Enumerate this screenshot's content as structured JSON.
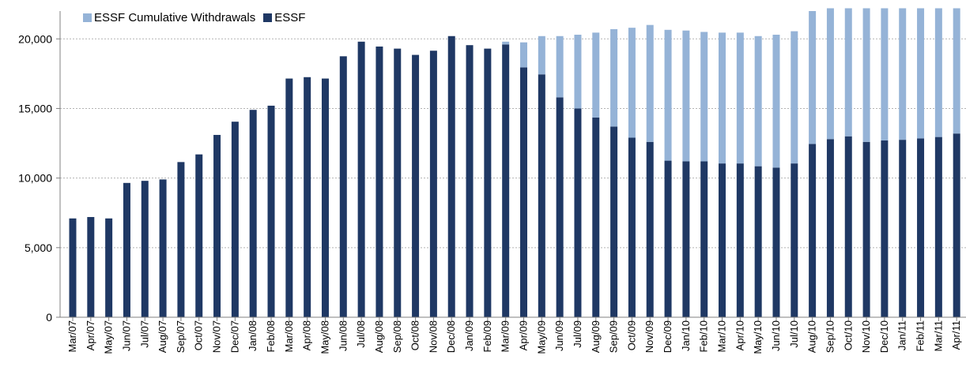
{
  "chart_data": {
    "type": "bar",
    "stacked": true,
    "categories": [
      "Mar/07",
      "Apr/07",
      "May/07",
      "Jun/07",
      "Jul/07",
      "Aug/07",
      "Sep/07",
      "Oct/07",
      "Nov/07",
      "Dec/07",
      "Jan/08",
      "Feb/08",
      "Mar/08",
      "Apr/08",
      "May/08",
      "Jun/08",
      "Jul/08",
      "Aug/08",
      "Sep/08",
      "Oct/08",
      "Nov/08",
      "Dec/08",
      "Jan/09",
      "Feb/09",
      "Mar/09",
      "Apr/09",
      "May/09",
      "Jun/09",
      "Jul/09",
      "Aug/09",
      "Sep/09",
      "Oct/09",
      "Nov/09",
      "Dec/09",
      "Jan/10",
      "Feb/10",
      "Mar/10",
      "Apr/10",
      "May/10",
      "Jun/10",
      "Jul/10",
      "Aug/10",
      "Sep/10",
      "Oct/10",
      "Nov/10",
      "Dec/10",
      "Jan/11",
      "Feb/11",
      "Mar/11",
      "Apr/11"
    ],
    "series": [
      {
        "name": "ESSF",
        "color": "#1f3864",
        "values": [
          7100,
          7200,
          7100,
          9650,
          9800,
          9900,
          11150,
          11700,
          13100,
          14050,
          14900,
          15200,
          17150,
          17250,
          17150,
          18750,
          19800,
          19450,
          19300,
          18850,
          19150,
          20200,
          19550,
          19300,
          19600,
          17950,
          17450,
          15800,
          15000,
          14350,
          13700,
          12900,
          12600,
          11250,
          11200,
          11200,
          11050,
          11050,
          10850,
          10750,
          11050,
          12450,
          12800,
          13000,
          12600,
          12700,
          12750,
          12850,
          12950,
          13200
        ]
      },
      {
        "name": "ESSF Cumulative Withdrawals",
        "color": "#95b3d7",
        "values": [
          0,
          0,
          0,
          0,
          0,
          0,
          0,
          0,
          0,
          0,
          0,
          0,
          0,
          0,
          0,
          0,
          0,
          0,
          0,
          0,
          0,
          0,
          0,
          0,
          200,
          1800,
          2750,
          4400,
          5300,
          6100,
          7000,
          7900,
          8400,
          9400,
          9400,
          9300,
          9400,
          9400,
          9350,
          9550,
          9500,
          9550,
          9400,
          9200,
          9600,
          9500,
          9450,
          9350,
          9250,
          9000
        ]
      }
    ],
    "legend": [
      "ESSF Cumulative Withdrawals",
      "ESSF"
    ],
    "legend_position": "top-left",
    "yticks": [
      "0",
      "5,000",
      "10,000",
      "15,000",
      "20,000"
    ],
    "ylim": [
      0,
      22000
    ],
    "grid": true,
    "title": "",
    "xlabel": "",
    "ylabel": ""
  }
}
